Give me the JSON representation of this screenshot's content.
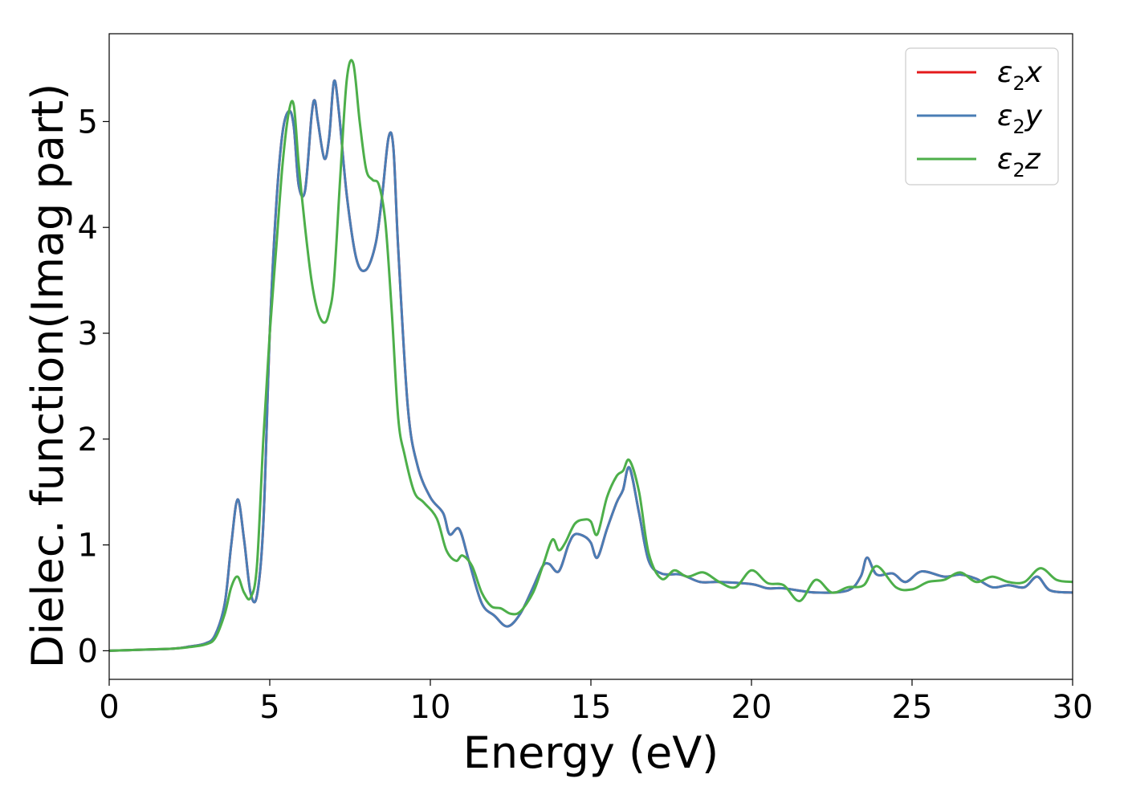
{
  "chart_data": {
    "type": "line",
    "title": "",
    "xlabel": "Energy (eV)",
    "ylabel": "Dielec. function(Imag part)",
    "xlim": [
      0,
      30
    ],
    "ylim": [
      -0.27,
      5.83
    ],
    "xticks": [
      0,
      5,
      10,
      15,
      20,
      25,
      30
    ],
    "yticks": [
      0,
      1,
      2,
      3,
      4,
      5
    ],
    "xtick_labels": [
      "0",
      "5",
      "10",
      "15",
      "20",
      "25",
      "30"
    ],
    "ytick_labels": [
      "0",
      "1",
      "2",
      "3",
      "4",
      "5"
    ],
    "grid": false,
    "legend_position": "top-right",
    "series": [
      {
        "name": "ε₂x",
        "label": {
          "base": "ε",
          "sub": "2",
          "tail": "x"
        },
        "color": "#e41a1c",
        "x": [
          0,
          1,
          2,
          2.5,
          3,
          3.3,
          3.6,
          3.8,
          4.0,
          4.2,
          4.4,
          4.6,
          4.8,
          5.0,
          5.2,
          5.4,
          5.6,
          5.75,
          5.9,
          6.1,
          6.3,
          6.4,
          6.5,
          6.7,
          6.85,
          7.0,
          7.15,
          7.4,
          7.7,
          8.0,
          8.3,
          8.5,
          8.7,
          8.85,
          9.0,
          9.3,
          9.6,
          10.0,
          10.4,
          10.6,
          10.9,
          11.2,
          11.6,
          12.0,
          12.4,
          12.8,
          13.2,
          13.5,
          13.7,
          14.0,
          14.3,
          14.5,
          14.8,
          15.0,
          15.2,
          15.5,
          15.8,
          16.0,
          16.2,
          16.5,
          16.8,
          17.2,
          17.8,
          18.4,
          19.0,
          20.0,
          20.5,
          21.0,
          22.0,
          23.0,
          23.4,
          23.6,
          23.9,
          24.4,
          24.8,
          25.3,
          26.0,
          26.5,
          27.0,
          27.5,
          28.0,
          28.5,
          28.9,
          29.3,
          30.0
        ],
        "values": [
          0,
          0.01,
          0.02,
          0.04,
          0.07,
          0.15,
          0.45,
          1.0,
          1.43,
          1.05,
          0.55,
          0.52,
          1.2,
          3.0,
          4.2,
          4.9,
          5.1,
          4.95,
          4.4,
          4.35,
          5.05,
          5.2,
          5.0,
          4.65,
          4.85,
          5.38,
          5.1,
          4.3,
          3.7,
          3.6,
          3.85,
          4.3,
          4.85,
          4.75,
          3.8,
          2.3,
          1.75,
          1.45,
          1.3,
          1.1,
          1.15,
          0.85,
          0.45,
          0.33,
          0.23,
          0.35,
          0.6,
          0.8,
          0.82,
          0.75,
          1.0,
          1.1,
          1.08,
          1.02,
          0.88,
          1.15,
          1.4,
          1.52,
          1.73,
          1.3,
          0.85,
          0.73,
          0.72,
          0.65,
          0.65,
          0.63,
          0.59,
          0.59,
          0.55,
          0.57,
          0.7,
          0.88,
          0.72,
          0.73,
          0.65,
          0.75,
          0.7,
          0.72,
          0.68,
          0.6,
          0.62,
          0.6,
          0.7,
          0.57,
          0.55
        ]
      },
      {
        "name": "ε₂y",
        "label": {
          "base": "ε",
          "sub": "2",
          "tail": "y"
        },
        "color": "#4a7db5",
        "x": [
          0,
          1,
          2,
          2.5,
          3,
          3.3,
          3.6,
          3.8,
          4.0,
          4.2,
          4.4,
          4.6,
          4.8,
          5.0,
          5.2,
          5.4,
          5.6,
          5.75,
          5.9,
          6.1,
          6.3,
          6.4,
          6.5,
          6.7,
          6.85,
          7.0,
          7.15,
          7.4,
          7.7,
          8.0,
          8.3,
          8.5,
          8.7,
          8.85,
          9.0,
          9.3,
          9.6,
          10.0,
          10.4,
          10.6,
          10.9,
          11.2,
          11.6,
          12.0,
          12.4,
          12.8,
          13.2,
          13.5,
          13.7,
          14.0,
          14.3,
          14.5,
          14.8,
          15.0,
          15.2,
          15.5,
          15.8,
          16.0,
          16.2,
          16.5,
          16.8,
          17.2,
          17.8,
          18.4,
          19.0,
          20.0,
          20.5,
          21.0,
          22.0,
          23.0,
          23.4,
          23.6,
          23.9,
          24.4,
          24.8,
          25.3,
          26.0,
          26.5,
          27.0,
          27.5,
          28.0,
          28.5,
          28.9,
          29.3,
          30.0
        ],
        "values": [
          0,
          0.01,
          0.02,
          0.04,
          0.07,
          0.15,
          0.45,
          1.0,
          1.43,
          1.05,
          0.55,
          0.52,
          1.2,
          3.0,
          4.2,
          4.9,
          5.1,
          4.95,
          4.4,
          4.35,
          5.05,
          5.2,
          5.0,
          4.65,
          4.85,
          5.38,
          5.1,
          4.3,
          3.7,
          3.6,
          3.85,
          4.3,
          4.85,
          4.75,
          3.8,
          2.3,
          1.75,
          1.45,
          1.3,
          1.1,
          1.15,
          0.85,
          0.45,
          0.33,
          0.23,
          0.35,
          0.6,
          0.8,
          0.82,
          0.75,
          1.0,
          1.1,
          1.08,
          1.02,
          0.88,
          1.15,
          1.4,
          1.52,
          1.73,
          1.3,
          0.85,
          0.73,
          0.72,
          0.65,
          0.65,
          0.63,
          0.59,
          0.59,
          0.55,
          0.57,
          0.7,
          0.88,
          0.72,
          0.73,
          0.65,
          0.75,
          0.7,
          0.72,
          0.68,
          0.6,
          0.62,
          0.6,
          0.7,
          0.57,
          0.55
        ]
      },
      {
        "name": "ε₂z",
        "label": {
          "base": "ε",
          "sub": "2",
          "tail": "z"
        },
        "color": "#4daf4a",
        "x": [
          0,
          1,
          2,
          2.5,
          3,
          3.3,
          3.6,
          3.8,
          4.0,
          4.2,
          4.4,
          4.6,
          4.8,
          5.0,
          5.2,
          5.4,
          5.6,
          5.75,
          5.9,
          6.1,
          6.3,
          6.5,
          6.7,
          6.85,
          7.0,
          7.2,
          7.4,
          7.6,
          7.8,
          8.0,
          8.2,
          8.4,
          8.6,
          8.8,
          9.0,
          9.2,
          9.5,
          9.8,
          10.2,
          10.5,
          10.8,
          11.0,
          11.3,
          11.6,
          11.9,
          12.2,
          12.5,
          12.8,
          13.2,
          13.5,
          13.8,
          14.0,
          14.2,
          14.5,
          14.8,
          15.0,
          15.2,
          15.5,
          15.8,
          16.0,
          16.2,
          16.5,
          16.8,
          17.2,
          17.6,
          18.0,
          18.5,
          19.0,
          19.5,
          20.0,
          20.5,
          21.0,
          21.5,
          22.0,
          22.5,
          23.0,
          23.5,
          23.9,
          24.5,
          25.0,
          25.5,
          26.0,
          26.5,
          27.0,
          27.5,
          28.0,
          28.5,
          29.0,
          29.5,
          30.0
        ],
        "values": [
          0,
          0.01,
          0.02,
          0.035,
          0.06,
          0.12,
          0.35,
          0.6,
          0.7,
          0.55,
          0.5,
          0.8,
          2.0,
          3.0,
          3.8,
          4.6,
          5.1,
          5.15,
          4.6,
          4.0,
          3.5,
          3.2,
          3.1,
          3.2,
          3.5,
          4.5,
          5.4,
          5.55,
          5.0,
          4.55,
          4.45,
          4.4,
          4.05,
          3.2,
          2.2,
          1.85,
          1.5,
          1.4,
          1.25,
          0.95,
          0.85,
          0.9,
          0.8,
          0.55,
          0.42,
          0.4,
          0.35,
          0.37,
          0.55,
          0.8,
          1.05,
          0.95,
          1.02,
          1.2,
          1.24,
          1.22,
          1.1,
          1.45,
          1.65,
          1.7,
          1.8,
          1.5,
          0.92,
          0.68,
          0.76,
          0.7,
          0.74,
          0.65,
          0.6,
          0.76,
          0.64,
          0.62,
          0.47,
          0.67,
          0.55,
          0.6,
          0.62,
          0.8,
          0.6,
          0.58,
          0.65,
          0.67,
          0.74,
          0.65,
          0.7,
          0.65,
          0.65,
          0.78,
          0.67,
          0.65
        ]
      }
    ]
  }
}
